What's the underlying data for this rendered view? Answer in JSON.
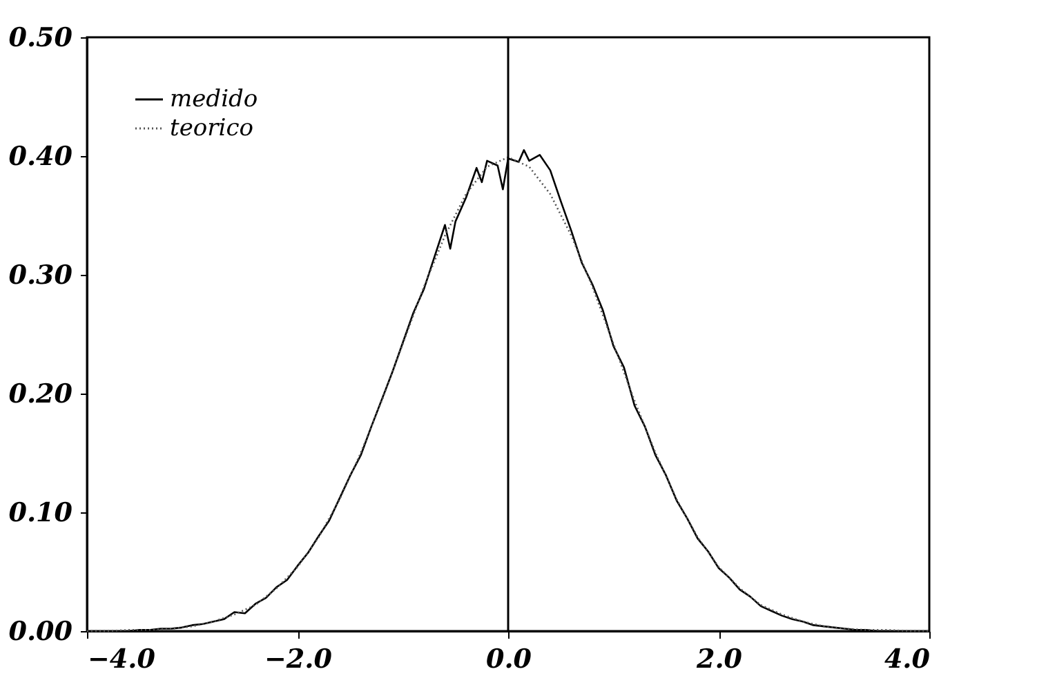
{
  "chart_data": {
    "type": "line",
    "xlim": [
      -4,
      4
    ],
    "ylim": [
      0,
      0.5
    ],
    "xticks": [
      {
        "value": -4,
        "label": "−4.0"
      },
      {
        "value": -2,
        "label": "−2.0"
      },
      {
        "value": 0,
        "label": "0.0"
      },
      {
        "value": 2,
        "label": "2.0"
      },
      {
        "value": 4,
        "label": "4.0"
      }
    ],
    "yticks": [
      {
        "value": 0,
        "label": "0.00"
      },
      {
        "value": 0.1,
        "label": "0.10"
      },
      {
        "value": 0.2,
        "label": "0.20"
      },
      {
        "value": 0.3,
        "label": "0.30"
      },
      {
        "value": 0.4,
        "label": "0.40"
      },
      {
        "value": 0.5,
        "label": "0.50"
      }
    ],
    "grid": false,
    "legend": "top left",
    "marker": "none",
    "ref_lines": [
      {
        "axis": "x",
        "value": 0,
        "label": null,
        "color": "#000000"
      }
    ],
    "series": [
      {
        "name": "medido",
        "color": "#000000",
        "line_style": "solid",
        "x": [
          -3.6,
          -3.5,
          -3.4,
          -3.3,
          -3.2,
          -3.1,
          -3.0,
          -2.9,
          -2.8,
          -2.7,
          -2.6,
          -2.5,
          -2.4,
          -2.3,
          -2.2,
          -2.1,
          -2.0,
          -1.9,
          -1.8,
          -1.7,
          -1.6,
          -1.5,
          -1.4,
          -1.3,
          -1.2,
          -1.1,
          -1.0,
          -0.9,
          -0.8,
          -0.7,
          -0.6,
          -0.55,
          -0.5,
          -0.4,
          -0.3,
          -0.25,
          -0.2,
          -0.1,
          -0.05,
          0,
          0.1,
          0.15,
          0.2,
          0.3,
          0.4,
          0.5,
          0.6,
          0.7,
          0.8,
          0.9,
          1.0,
          1.1,
          1.2,
          1.3,
          1.4,
          1.5,
          1.6,
          1.7,
          1.8,
          1.9,
          2.0,
          2.1,
          2.2,
          2.3,
          2.4,
          2.5,
          2.6,
          2.7,
          2.8,
          2.9,
          3.0,
          3.1,
          3.2,
          3.3,
          3.4,
          3.5
        ],
        "values": [
          0.0,
          0.001,
          0.001,
          0.002,
          0.002,
          0.003,
          0.005,
          0.006,
          0.008,
          0.01,
          0.016,
          0.015,
          0.023,
          0.028,
          0.037,
          0.043,
          0.055,
          0.066,
          0.08,
          0.093,
          0.112,
          0.131,
          0.148,
          0.172,
          0.195,
          0.218,
          0.243,
          0.268,
          0.288,
          0.315,
          0.342,
          0.322,
          0.345,
          0.365,
          0.39,
          0.378,
          0.396,
          0.392,
          0.372,
          0.398,
          0.395,
          0.405,
          0.396,
          0.401,
          0.388,
          0.362,
          0.337,
          0.31,
          0.292,
          0.27,
          0.24,
          0.222,
          0.19,
          0.172,
          0.148,
          0.131,
          0.11,
          0.095,
          0.078,
          0.067,
          0.053,
          0.045,
          0.035,
          0.029,
          0.021,
          0.017,
          0.013,
          0.01,
          0.008,
          0.005,
          0.004,
          0.003,
          0.002,
          0.001,
          0.001,
          0.0
        ]
      },
      {
        "name": "teorico",
        "color": "#555555",
        "line_style": "dotted",
        "x": [
          -4,
          -3.8,
          -3.6,
          -3.4,
          -3.2,
          -3,
          -2.8,
          -2.6,
          -2.4,
          -2.2,
          -2,
          -1.8,
          -1.6,
          -1.4,
          -1.2,
          -1,
          -0.8,
          -0.6,
          -0.4,
          -0.2,
          0,
          0.2,
          0.4,
          0.6,
          0.8,
          1,
          1.2,
          1.4,
          1.6,
          1.8,
          2,
          2.2,
          2.4,
          2.6,
          2.8,
          3,
          3.2,
          3.4,
          3.6,
          3.8,
          4
        ],
        "values": [
          0.0,
          0.0,
          0.001,
          0.001,
          0.002,
          0.004,
          0.008,
          0.014,
          0.022,
          0.036,
          0.054,
          0.079,
          0.111,
          0.15,
          0.194,
          0.242,
          0.29,
          0.333,
          0.368,
          0.391,
          0.399,
          0.391,
          0.368,
          0.333,
          0.29,
          0.242,
          0.194,
          0.15,
          0.111,
          0.079,
          0.054,
          0.036,
          0.022,
          0.014,
          0.008,
          0.004,
          0.002,
          0.001,
          0.001,
          0.0,
          0.0
        ]
      }
    ]
  }
}
